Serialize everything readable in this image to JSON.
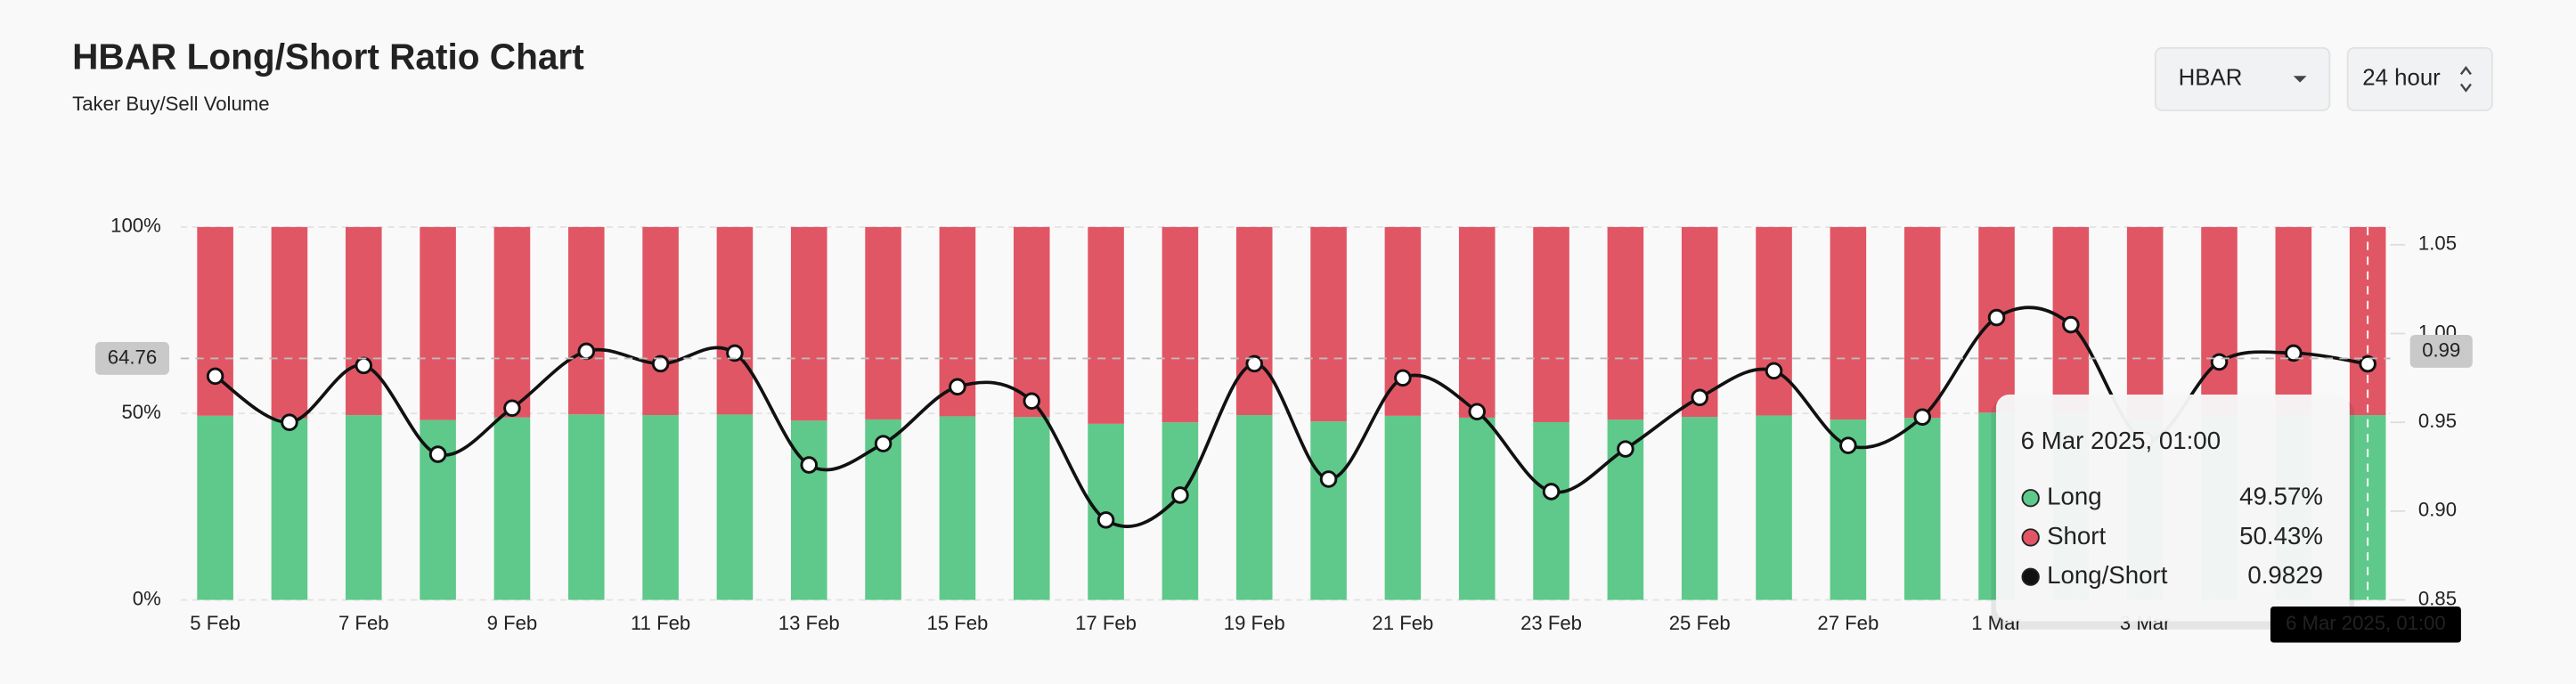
{
  "header": {
    "title": "HBAR Long/Short Ratio Chart",
    "subtitle": "Taker Buy/Sell Volume",
    "symbol_select": "HBAR",
    "period_select": "24 hour"
  },
  "chart_data": {
    "type": "bar",
    "categories": [
      "5 Feb",
      null,
      "7 Feb",
      null,
      "9 Feb",
      null,
      "11 Feb",
      null,
      "13 Feb",
      null,
      "15 Feb",
      null,
      "17 Feb",
      null,
      "19 Feb",
      null,
      "21 Feb",
      null,
      "23 Feb",
      null,
      "25 Feb",
      null,
      "27 Feb",
      null,
      "1 Mar",
      null,
      "3 Mar",
      null,
      null,
      null
    ],
    "series": [
      {
        "name": "Long",
        "color": "#5ec98a",
        "values": [
          49.39,
          48.72,
          49.55,
          48.24,
          48.93,
          49.75,
          49.57,
          49.72,
          48.08,
          48.4,
          49.24,
          49.03,
          47.23,
          47.62,
          49.57,
          47.86,
          49.37,
          48.88,
          47.67,
          48.32,
          49.08,
          49.47,
          48.37,
          48.8,
          50.22,
          50.12,
          48.45,
          49.6,
          49.72,
          49.57
        ]
      },
      {
        "name": "Short",
        "color": "#e15665",
        "values": [
          50.61,
          51.28,
          50.45,
          51.76,
          51.07,
          50.25,
          50.43,
          50.28,
          51.92,
          51.6,
          50.76,
          50.97,
          52.77,
          52.38,
          50.43,
          52.14,
          50.63,
          51.12,
          52.33,
          51.68,
          50.92,
          50.53,
          51.63,
          51.2,
          49.78,
          49.88,
          51.55,
          50.4,
          50.28,
          50.43
        ]
      },
      {
        "name": "Long/Short",
        "color": "#111111",
        "axis": "y2",
        "values": [
          0.976,
          0.95,
          0.982,
          0.932,
          0.958,
          0.99,
          0.983,
          0.989,
          0.926,
          0.938,
          0.97,
          0.962,
          0.895,
          0.909,
          0.983,
          0.918,
          0.975,
          0.956,
          0.911,
          0.935,
          0.964,
          0.979,
          0.937,
          0.953,
          1.009,
          1.005,
          0.94,
          0.984,
          0.989,
          0.9829
        ]
      }
    ],
    "ylim": [
      0,
      100
    ],
    "yticks": [
      {
        "value": 0,
        "label": "0%"
      },
      {
        "value": 50,
        "label": "50%"
      },
      {
        "value": 100,
        "label": "100%"
      }
    ],
    "y2lim": [
      0.85,
      1.06
    ],
    "y2ticks": [
      0.85,
      {
        "value": 0.9,
        "label": "0.90"
      },
      0.95,
      {
        "value": 1,
        "label": "1.00"
      },
      1.05
    ],
    "grid": true,
    "crosshair": {
      "index": 29,
      "y": 64.76,
      "y2": 0.99,
      "x_label": "6 Mar 2025, 01:00"
    },
    "tooltip": {
      "title": "6 Mar 2025, 01:00",
      "values": [
        "49.57%",
        "50.43%",
        "0.9829"
      ]
    }
  }
}
